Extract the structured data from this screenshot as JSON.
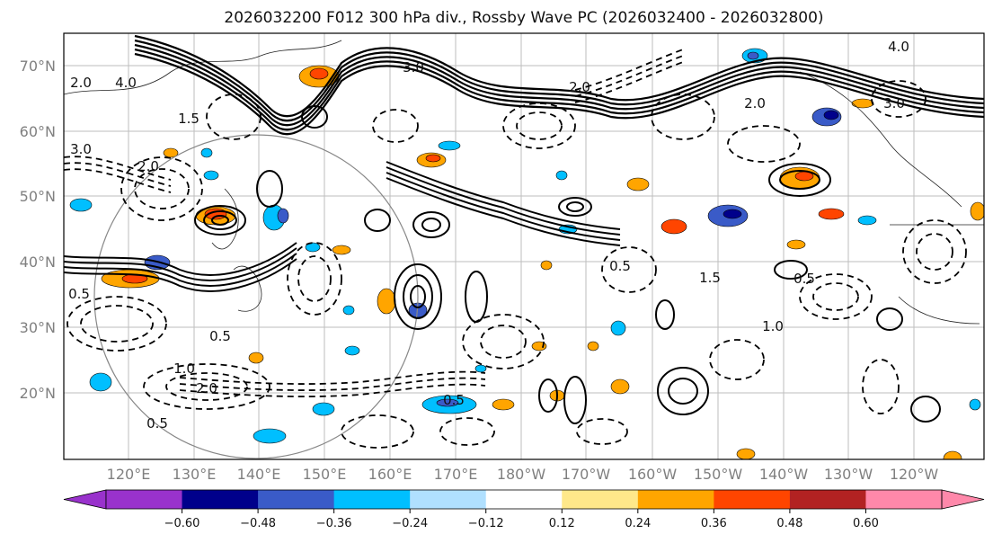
{
  "title": "2026032200 F012 300 hPa div., Rossby Wave PC (2026032400 - 2026032800)",
  "lat_labels": [
    "70°N",
    "60°N",
    "50°N",
    "40°N",
    "30°N",
    "20°N"
  ],
  "lon_labels": [
    "120°E",
    "130°E",
    "140°E",
    "150°E",
    "160°E",
    "170°E",
    "180°W",
    "170°W",
    "160°W",
    "150°W",
    "140°W",
    "130°W",
    "120°W"
  ],
  "colorbar": {
    "ticks": [
      "−0.60",
      "−0.48",
      "−0.36",
      "−0.24",
      "−0.12",
      "0.12",
      "0.24",
      "0.36",
      "0.48",
      "0.60"
    ],
    "colors": [
      "#9932cc",
      "#00008b",
      "#3a5bc8",
      "#00bfff",
      "#b0e0ff",
      "#ffffff",
      "#ffe88a",
      "#ffa500",
      "#ff4500",
      "#b22222",
      "#ff88aa"
    ]
  },
  "contour_labels": [
    "2.0",
    "4.0",
    "3.0",
    "2.0",
    "1.5",
    "0.5",
    "1.0",
    "0.5",
    "3.0",
    "2.0",
    "4.0",
    "3.0",
    "2.0",
    "0.5",
    "1.0",
    "1.5",
    "0.5",
    "0.5",
    "2.0",
    "0.5"
  ]
}
